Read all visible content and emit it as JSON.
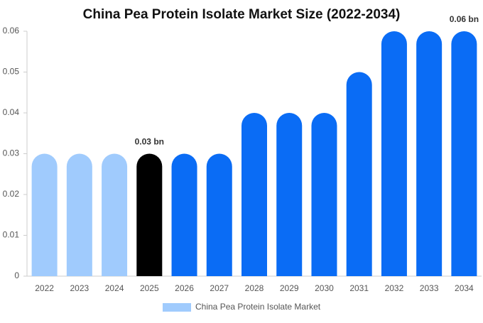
{
  "chart_data": {
    "type": "bar",
    "title": "China Pea Protein Isolate Market Size (2022-2034)",
    "categories": [
      "2022",
      "2023",
      "2024",
      "2025",
      "2026",
      "2027",
      "2028",
      "2029",
      "2030",
      "2031",
      "2032",
      "2033",
      "2034"
    ],
    "series": [
      {
        "name": "China Pea Protein Isolate Market",
        "color": "#a0cbfd",
        "values": [
          0.03,
          0.03,
          0.03,
          0.03,
          0.03,
          0.03,
          0.04,
          0.04,
          0.04,
          0.05,
          0.06,
          0.06,
          0.06
        ],
        "colors": [
          "#a0cbfd",
          "#a0cbfd",
          "#a0cbfd",
          "#000000",
          "#0a6cf5",
          "#0a6cf5",
          "#0a6cf5",
          "#0a6cf5",
          "#0a6cf5",
          "#0a6cf5",
          "#0a6cf5",
          "#0a6cf5",
          "#0a6cf5"
        ],
        "value_labels": [
          null,
          null,
          null,
          "0.03 bn",
          null,
          null,
          null,
          null,
          null,
          null,
          null,
          null,
          "0.06 bn"
        ]
      }
    ],
    "ylim": [
      0,
      0.06
    ],
    "yticks": [
      0,
      0.01,
      0.02,
      0.03,
      0.04,
      0.05,
      0.06
    ],
    "grid": false,
    "legend": "bottom"
  }
}
